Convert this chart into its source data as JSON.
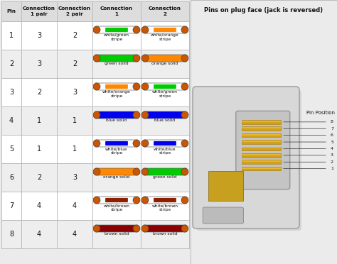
{
  "title": "Pins on plug face (jack is reversed)",
  "headers": [
    "Pin",
    "Connection\n1 pair",
    "Connection\n2 pair",
    "Connection\n1",
    "Connection\n2"
  ],
  "rows": [
    {
      "pin": "1",
      "c1pair": "3",
      "c2pair": "2",
      "conn1_label": "white/green\nstripe",
      "conn2_label": "white/orange\nstripe",
      "conn1_main": "#ffffff",
      "conn1_stripe": "#00cc00",
      "conn2_main": "#ffffff",
      "conn2_stripe": "#ff8800",
      "conn1_has_stripe": true,
      "conn2_has_stripe": true
    },
    {
      "pin": "2",
      "c1pair": "3",
      "c2pair": "2",
      "conn1_label": "green solid",
      "conn2_label": "orange solid",
      "conn1_main": "#00cc00",
      "conn1_stripe": "#00cc00",
      "conn2_main": "#ff8800",
      "conn2_stripe": "#ff8800",
      "conn1_has_stripe": false,
      "conn2_has_stripe": false
    },
    {
      "pin": "3",
      "c1pair": "2",
      "c2pair": "3",
      "conn1_label": "white/orange\nstripe",
      "conn2_label": "white/green\nstripe",
      "conn1_main": "#ffffff",
      "conn1_stripe": "#ff8800",
      "conn2_main": "#ffffff",
      "conn2_stripe": "#00cc00",
      "conn1_has_stripe": true,
      "conn2_has_stripe": true
    },
    {
      "pin": "4",
      "c1pair": "1",
      "c2pair": "1",
      "conn1_label": "blue solid",
      "conn2_label": "blue solid",
      "conn1_main": "#0000ee",
      "conn1_stripe": "#0000ee",
      "conn2_main": "#0000ee",
      "conn2_stripe": "#0000ee",
      "conn1_has_stripe": false,
      "conn2_has_stripe": false
    },
    {
      "pin": "5",
      "c1pair": "1",
      "c2pair": "1",
      "conn1_label": "white/blue\nstripe",
      "conn2_label": "white/blue\nstripe",
      "conn1_main": "#ffffff",
      "conn1_stripe": "#0000ee",
      "conn2_main": "#ffffff",
      "conn2_stripe": "#0000ee",
      "conn1_has_stripe": true,
      "conn2_has_stripe": true
    },
    {
      "pin": "6",
      "c1pair": "2",
      "c2pair": "3",
      "conn1_label": "orange solid",
      "conn2_label": "green solid",
      "conn1_main": "#ff8800",
      "conn1_stripe": "#ff8800",
      "conn2_main": "#00cc00",
      "conn2_stripe": "#00cc00",
      "conn1_has_stripe": false,
      "conn2_has_stripe": false
    },
    {
      "pin": "7",
      "c1pair": "4",
      "c2pair": "4",
      "conn1_label": "white/brown\nstripe",
      "conn2_label": "white/brown\nstripe",
      "conn1_main": "#ffffff",
      "conn1_stripe": "#8B2000",
      "conn2_main": "#ffffff",
      "conn2_stripe": "#8B2000",
      "conn1_has_stripe": true,
      "conn2_has_stripe": true
    },
    {
      "pin": "8",
      "c1pair": "4",
      "c2pair": "4",
      "conn1_label": "brown solid",
      "conn2_label": "brown solid",
      "conn1_main": "#8B0000",
      "conn1_stripe": "#8B0000",
      "conn2_main": "#8B0000",
      "conn2_stripe": "#8B0000",
      "conn1_has_stripe": false,
      "conn2_has_stripe": false
    }
  ],
  "cap_color": "#cc5500",
  "bg_color": "#ebebeb",
  "row_colors": [
    "#ffffff",
    "#eeeeee"
  ],
  "header_bg": "#dddddd",
  "grid_color": "#bbbbbb",
  "text_color": "#111111",
  "pin_positions": [
    "8",
    "7",
    "6",
    "5",
    "4",
    "3",
    "2",
    "1"
  ],
  "fig_w": 4.74,
  "fig_h": 3.72,
  "dpi": 100
}
